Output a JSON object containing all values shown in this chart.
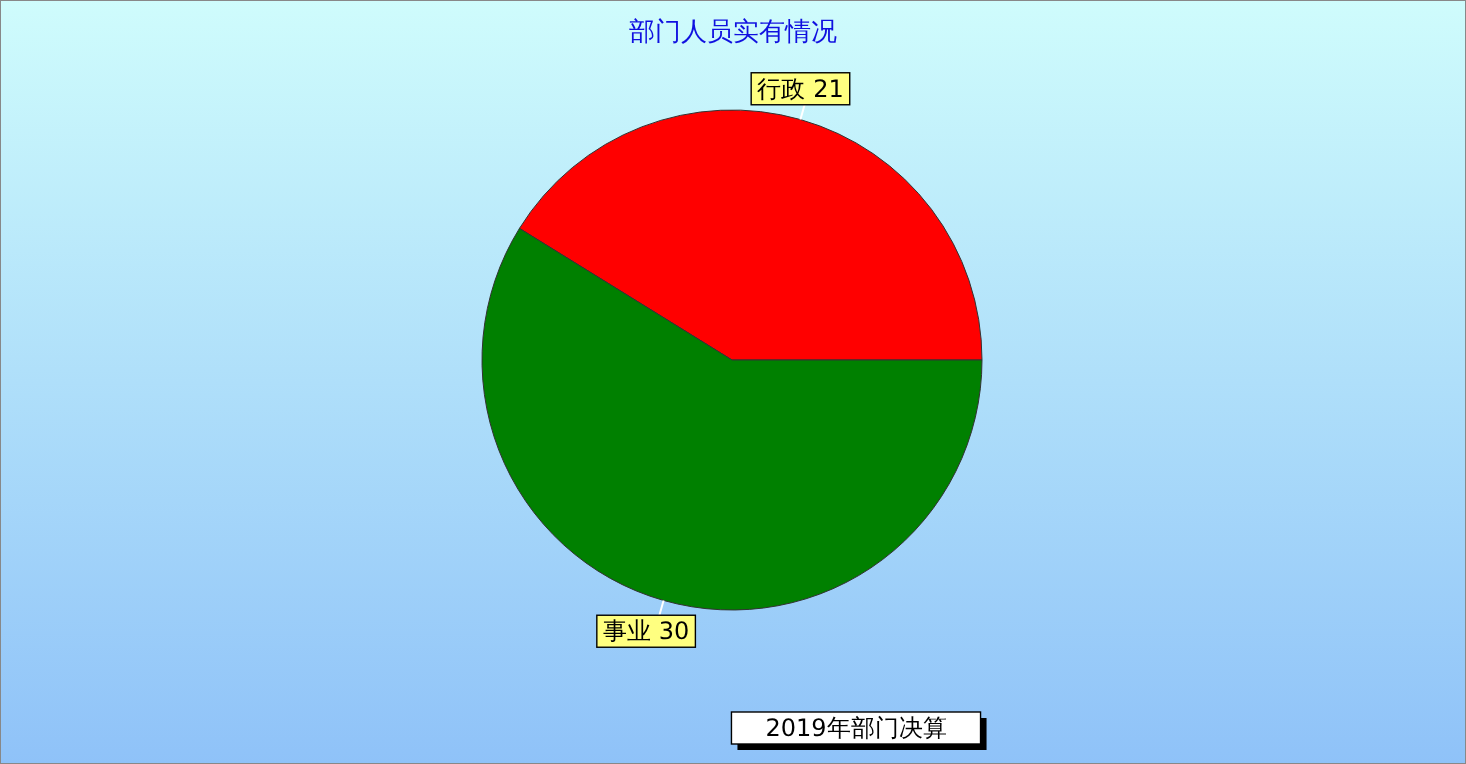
{
  "chart_data": {
    "type": "pie",
    "title": "部门人员实有情况",
    "categories": [
      "行政",
      "事业"
    ],
    "values": [
      21,
      30
    ],
    "colors": [
      "#ff0000",
      "#008000"
    ],
    "data_labels": true,
    "annotations": [
      "2019年部门决算"
    ]
  }
}
